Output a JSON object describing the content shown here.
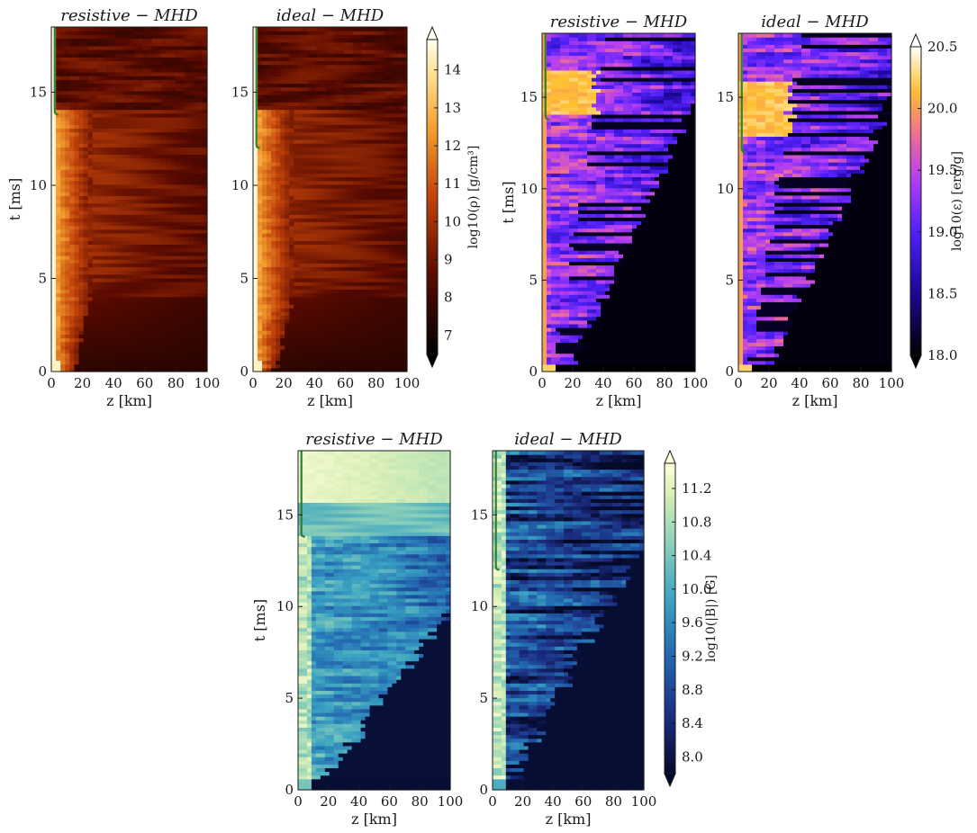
{
  "chart_data": [
    {
      "type": "heatmap",
      "quantity": "density",
      "colormap": "afmhot",
      "panels": [
        {
          "title": "resistive − MHD",
          "xlabel": "z [km]",
          "ylabel": "t [ms]",
          "horizon_t_ms": 13.8
        },
        {
          "title": "ideal − MHD",
          "xlabel": "z [km]",
          "ylabel": "",
          "horizon_t_ms": 12.0
        }
      ],
      "xlim": [
        0,
        100
      ],
      "ylim": [
        0,
        18.5
      ],
      "x_ticks": [
        "0",
        "20",
        "40",
        "60",
        "80",
        "100"
      ],
      "y_ticks": [
        "0",
        "5",
        "10",
        "15"
      ],
      "colorbar": {
        "label": "log10(ρ) [g/cm³]",
        "range": [
          6.5,
          14.8
        ],
        "ticks": [
          "7",
          "8",
          "9",
          "10",
          "11",
          "12",
          "13",
          "14"
        ],
        "extend": "both"
      }
    },
    {
      "type": "heatmap",
      "quantity": "specific internal energy",
      "colormap": "gnuplot2",
      "panels": [
        {
          "title": "resistive − MHD",
          "xlabel": "z [km]",
          "ylabel": "t [ms]",
          "horizon_t_ms": 13.8
        },
        {
          "title": "ideal − MHD",
          "xlabel": "z [km]",
          "ylabel": "",
          "horizon_t_ms": 12.0
        }
      ],
      "xlim": [
        0,
        100
      ],
      "ylim": [
        0,
        18.5
      ],
      "x_ticks": [
        "0",
        "20",
        "40",
        "60",
        "80",
        "100"
      ],
      "y_ticks": [
        "0",
        "5",
        "10",
        "15"
      ],
      "colorbar": {
        "label": "log10(ε) [erg/g]",
        "range": [
          18.0,
          20.5
        ],
        "ticks": [
          "18.0",
          "18.5",
          "19.0",
          "19.5",
          "20.0",
          "20.5"
        ],
        "extend": "both"
      }
    },
    {
      "type": "heatmap",
      "quantity": "magnetic field strength",
      "colormap": "YlGnBu_r",
      "panels": [
        {
          "title": "resistive − MHD",
          "xlabel": "z [km]",
          "ylabel": "t [ms]",
          "horizon_t_ms": 13.8
        },
        {
          "title": "ideal − MHD",
          "xlabel": "z [km]",
          "ylabel": "",
          "horizon_t_ms": 12.0
        }
      ],
      "xlim": [
        0,
        100
      ],
      "ylim": [
        0,
        18.5
      ],
      "x_ticks": [
        "0",
        "20",
        "40",
        "60",
        "80",
        "100"
      ],
      "y_ticks": [
        "0",
        "5",
        "10",
        "15"
      ],
      "colorbar": {
        "label": "log10(|B|) [G]",
        "range": [
          7.8,
          11.5
        ],
        "ticks": [
          "8.0",
          "8.4",
          "8.8",
          "9.2",
          "9.6",
          "10.0",
          "10.4",
          "10.8",
          "11.2"
        ],
        "extend": "both"
      }
    }
  ],
  "colors": {
    "horizon_line": "#2e7d32",
    "background": "#ffffff",
    "axes": "#1a1a1a"
  }
}
